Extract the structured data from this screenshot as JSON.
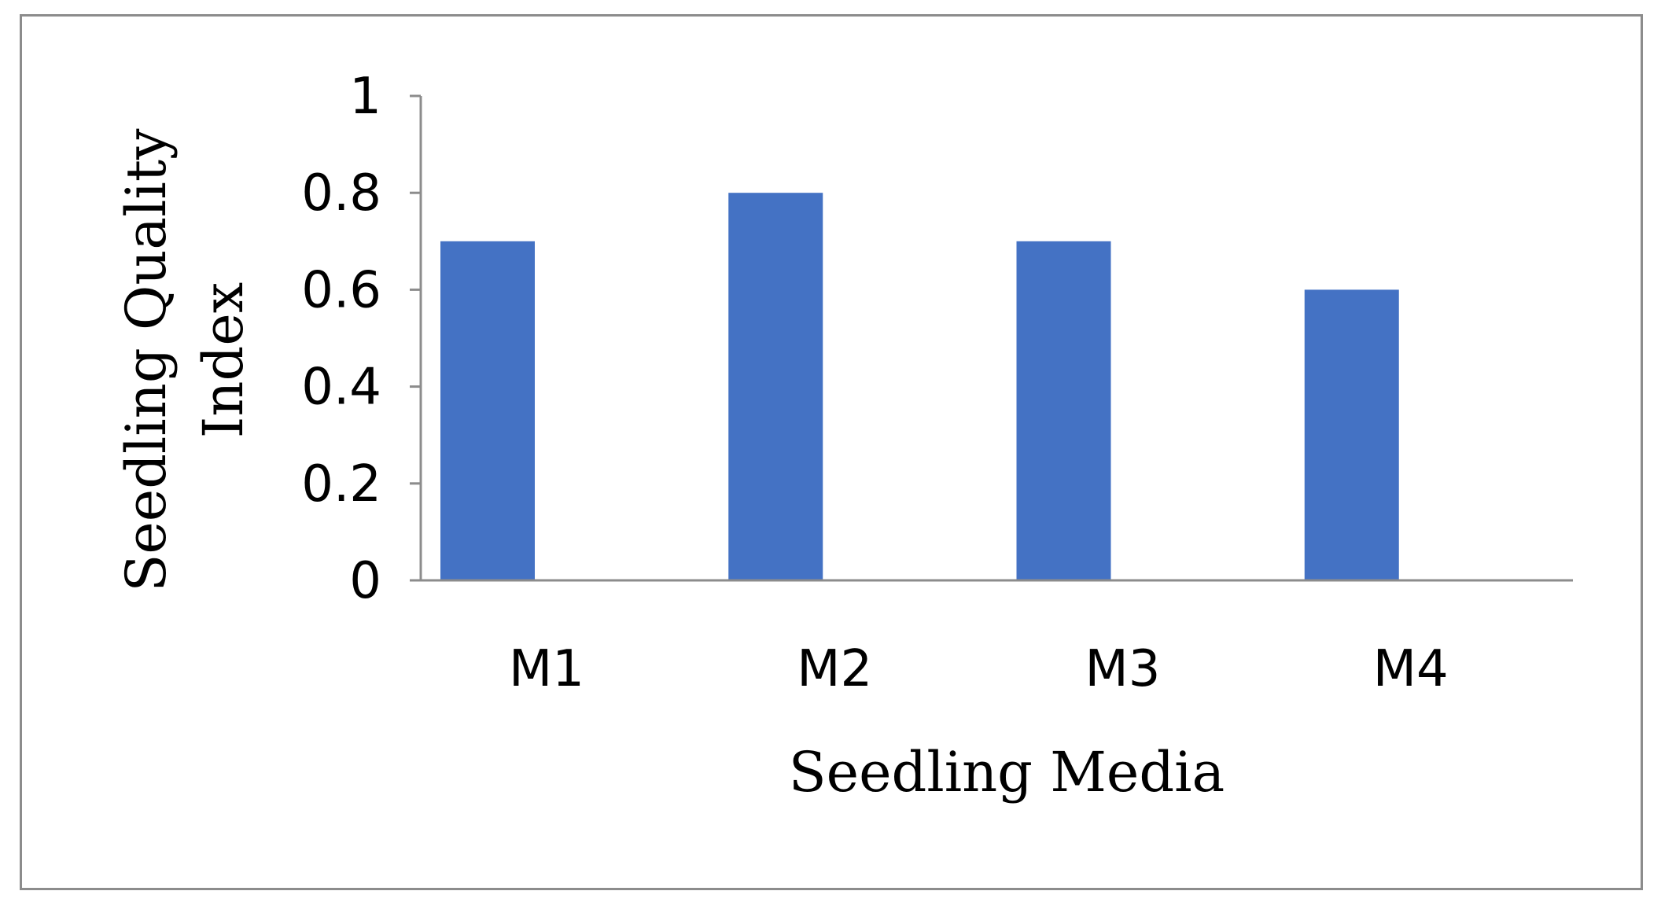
{
  "chart_data": {
    "type": "bar",
    "categories": [
      "M1",
      "M2",
      "M3",
      "M4"
    ],
    "values": [
      0.7,
      0.8,
      0.7,
      0.6
    ],
    "title": "",
    "xlabel": "Seedling Media",
    "ylabel_lines": [
      "Seedling Quality",
      "Index"
    ],
    "ylim": [
      0,
      1
    ],
    "yticks": [
      0,
      0.2,
      0.4,
      0.6,
      0.8,
      1
    ],
    "ytick_labels": [
      "0",
      "0.2",
      "0.4",
      "0.6",
      "0.8",
      "1"
    ],
    "grid": false,
    "legend": "none",
    "bar_color": "#4472C4",
    "axis_color": "#8C8C8C"
  }
}
